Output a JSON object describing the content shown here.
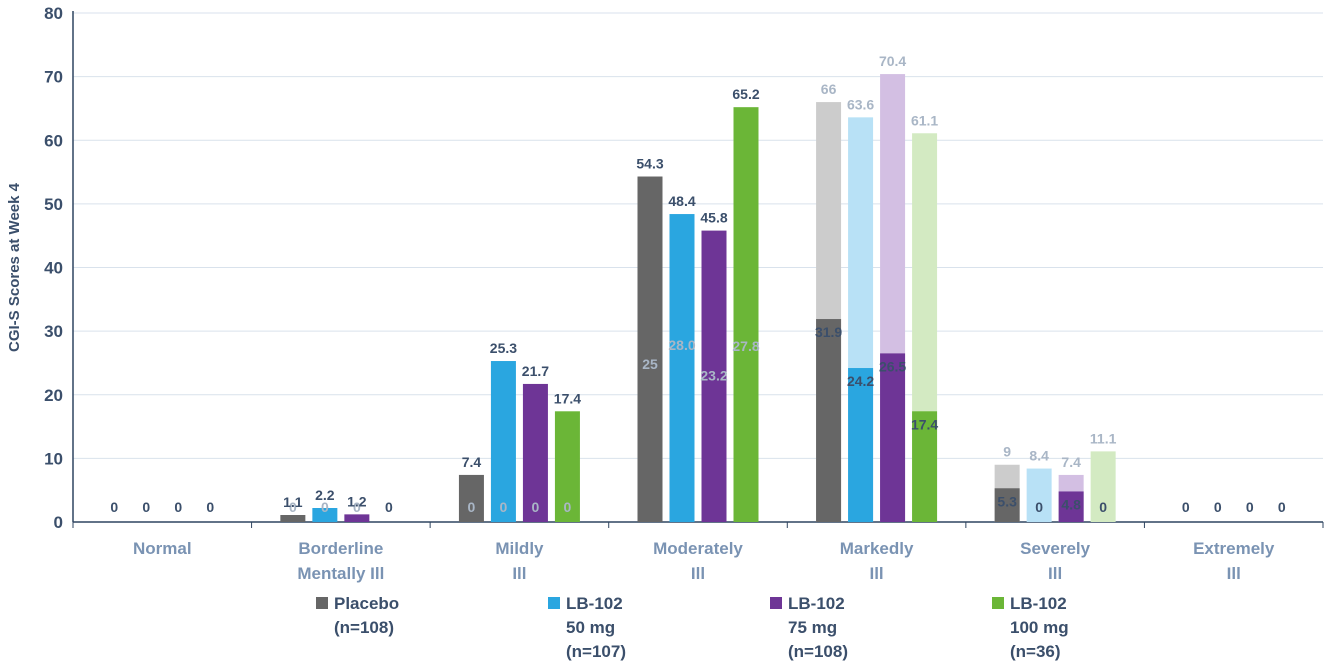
{
  "chart_data": {
    "type": "bar",
    "ylabel": "CGI-S Scores at Week 4",
    "ylim": [
      0,
      80
    ],
    "yticks": [
      0,
      10,
      20,
      30,
      40,
      50,
      60,
      70,
      80
    ],
    "categories": [
      [
        "Normal"
      ],
      [
        "Borderline",
        "Mentally Ill"
      ],
      [
        "Mildly",
        "Ill"
      ],
      [
        "Moderately",
        "Ill"
      ],
      [
        "Markedly",
        "Ill"
      ],
      [
        "Severely",
        "Ill"
      ],
      [
        "Extremely",
        "Ill"
      ]
    ],
    "series": [
      {
        "name": "Placebo",
        "legend": [
          "Placebo",
          "(n=108)"
        ],
        "color": "#666666",
        "faded_color": "#cccccc",
        "values": [
          0,
          1.1,
          7.4,
          54.3,
          31.9,
          5.3,
          0
        ],
        "labels": [
          "0",
          "1.1",
          "7.4",
          "54.3",
          "31.9",
          "5.3",
          "0"
        ],
        "faded_values": [
          0,
          0,
          0,
          25,
          66,
          9,
          0
        ],
        "faded_labels": [
          "",
          "0",
          "0",
          "25",
          "66",
          "9",
          ""
        ]
      },
      {
        "name": "LB-102 50 mg",
        "legend": [
          "LB-102",
          "50 mg",
          "(n=107)"
        ],
        "color": "#2aa6e0",
        "faded_color": "#b8e1f6",
        "values": [
          0,
          2.2,
          25.3,
          48.4,
          24.2,
          0,
          0
        ],
        "labels": [
          "0",
          "2.2",
          "25.3",
          "48.4",
          "24.2",
          "0",
          "0"
        ],
        "faded_values": [
          0,
          0,
          0,
          28.0,
          63.6,
          8.4,
          0
        ],
        "faded_labels": [
          "",
          "0",
          "0",
          "28.0",
          "63.6",
          "8.4",
          ""
        ]
      },
      {
        "name": "LB-102 75 mg",
        "legend": [
          "LB-102",
          "75 mg",
          "(n=108)"
        ],
        "color": "#6e3596",
        "faded_color": "#d3bfe3",
        "values": [
          0,
          1.2,
          21.7,
          45.8,
          26.5,
          4.8,
          0
        ],
        "labels": [
          "0",
          "1.2",
          "21.7",
          "45.8",
          "26.5",
          "4.8",
          "0"
        ],
        "faded_values": [
          0,
          0,
          0,
          23.2,
          70.4,
          7.4,
          0
        ],
        "faded_labels": [
          "",
          "0",
          "0",
          "23.2",
          "70.4",
          "7.4",
          ""
        ]
      },
      {
        "name": "LB-102 100 mg",
        "legend": [
          "LB-102",
          "100 mg",
          "(n=36)"
        ],
        "color": "#6bb637",
        "faded_color": "#d3eac2",
        "values": [
          0,
          0,
          17.4,
          65.2,
          17.4,
          0,
          0
        ],
        "labels": [
          "0",
          "0",
          "17.4",
          "65.2",
          "17.4",
          "0",
          "0"
        ],
        "faded_values": [
          0,
          0,
          0,
          27.8,
          61.1,
          11.1,
          0
        ],
        "faded_labels": [
          "",
          "",
          "0",
          "27.8",
          "61.1",
          "11.1",
          ""
        ]
      }
    ]
  }
}
